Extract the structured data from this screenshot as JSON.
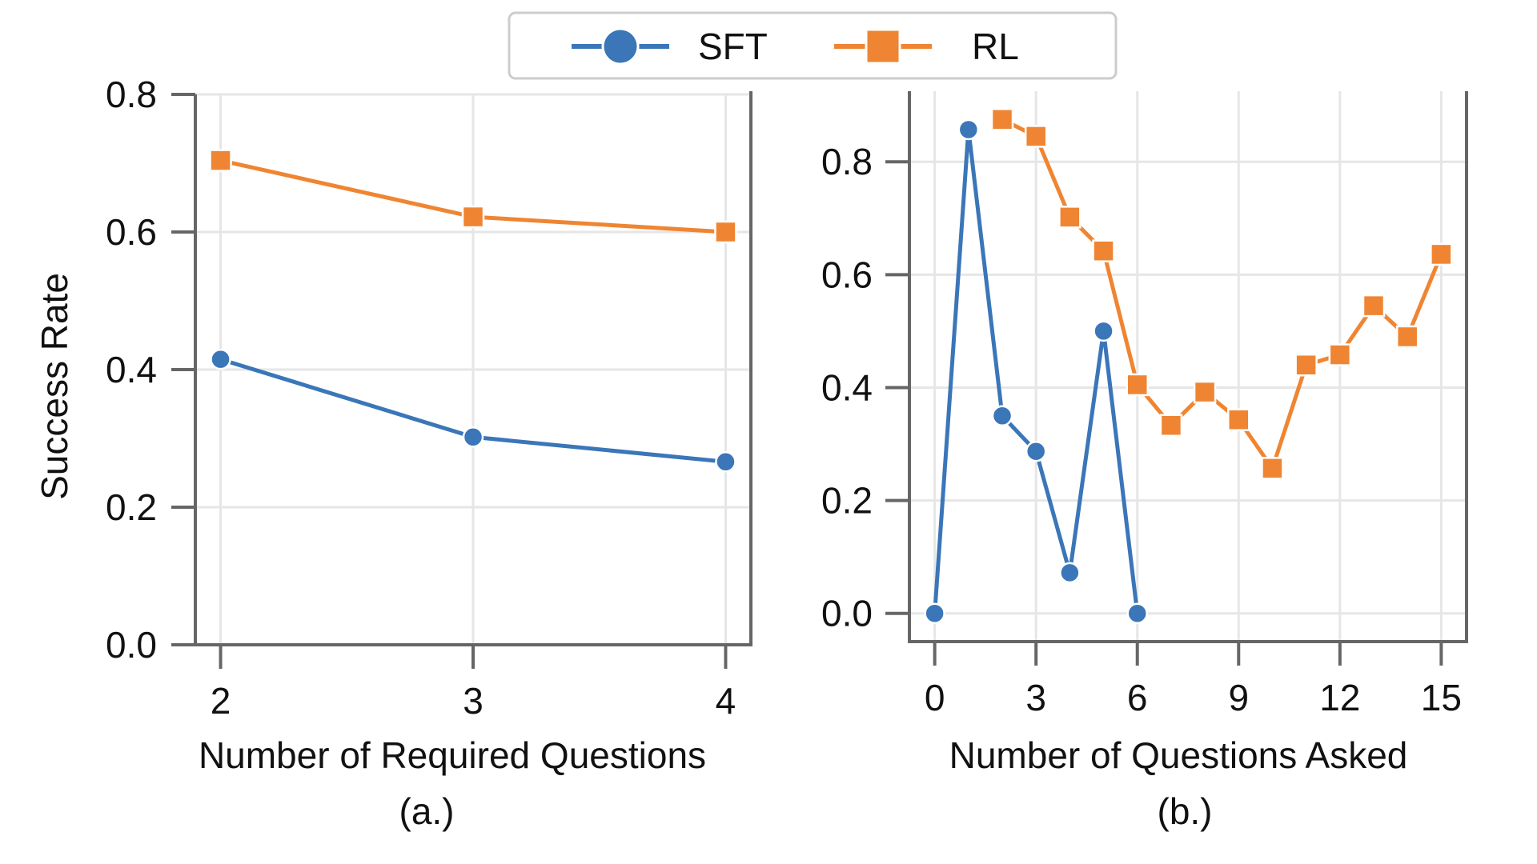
{
  "legend": {
    "placement": "top-center",
    "entries": [
      {
        "label": "SFT",
        "color": "#3a76b8",
        "marker": "circle"
      },
      {
        "label": "RL",
        "color": "#ef8532",
        "marker": "square"
      }
    ]
  },
  "chart_data": [
    {
      "type": "line",
      "caption": "(a.)",
      "xlabel": "Number of Required Questions",
      "ylabel": "Success Rate",
      "xlim": [
        1.9,
        4.1
      ],
      "ylim": [
        0.0,
        0.8
      ],
      "xticks": [
        2,
        3,
        4
      ],
      "yticks": [
        0.0,
        0.2,
        0.4,
        0.6,
        0.8
      ],
      "ytick_labels": [
        "0.0",
        "0.2",
        "0.4",
        "0.6",
        "0.8"
      ],
      "grid": true,
      "x": [
        2,
        3,
        4
      ],
      "series": [
        {
          "name": "SFT",
          "color": "#3a76b8",
          "marker": "circle",
          "values": [
            0.415,
            0.302,
            0.266
          ]
        },
        {
          "name": "RL",
          "color": "#ef8532",
          "marker": "square",
          "values": [
            0.704,
            0.622,
            0.6
          ]
        }
      ]
    },
    {
      "type": "line",
      "caption": "(b.)",
      "xlabel": "Number of Questions Asked",
      "ylabel": "",
      "xlim": [
        -0.75,
        15.75
      ],
      "ylim": [
        -0.05,
        0.925
      ],
      "xticks": [
        0,
        3,
        6,
        9,
        12,
        15
      ],
      "yticks": [
        0.0,
        0.2,
        0.4,
        0.6,
        0.8
      ],
      "ytick_labels": [
        "0.0",
        "0.2",
        "0.4",
        "0.6",
        "0.8"
      ],
      "grid": true,
      "series": [
        {
          "name": "SFT",
          "color": "#3a76b8",
          "marker": "circle",
          "x": [
            0,
            1,
            2,
            3,
            4,
            5,
            6
          ],
          "values": [
            0.0,
            0.857,
            0.35,
            0.287,
            0.072,
            0.5,
            0.0
          ]
        },
        {
          "name": "RL",
          "color": "#ef8532",
          "marker": "square",
          "x": [
            2,
            3,
            4,
            5,
            6,
            7,
            8,
            9,
            10,
            11,
            12,
            13,
            14,
            15
          ],
          "values": [
            0.875,
            0.845,
            0.702,
            0.642,
            0.405,
            0.333,
            0.392,
            0.343,
            0.257,
            0.44,
            0.458,
            0.545,
            0.49,
            0.636
          ]
        }
      ]
    }
  ]
}
